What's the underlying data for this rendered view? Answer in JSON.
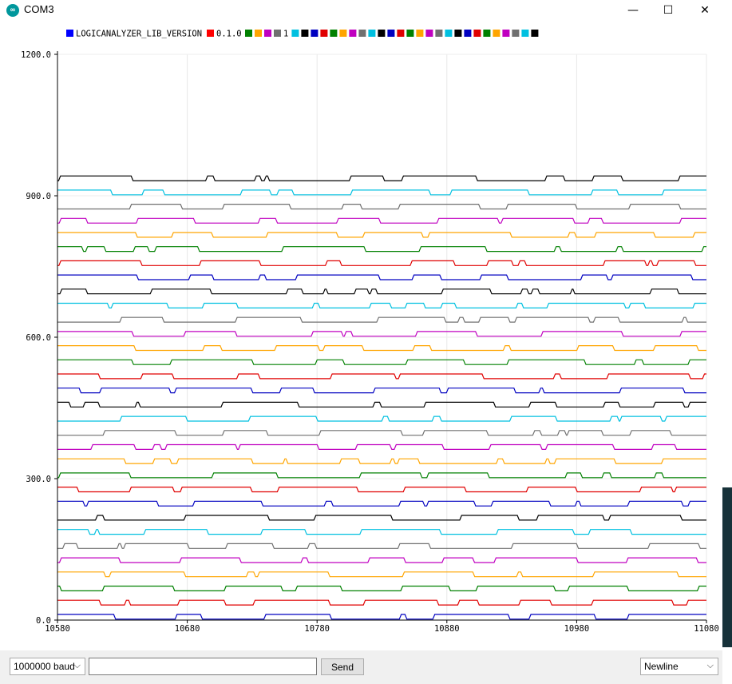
{
  "window": {
    "title": "COM3",
    "minimize_glyph": "—",
    "maximize_glyph": "☐",
    "close_glyph": "✕",
    "app_icon": "arduino-icon"
  },
  "legend": {
    "first_label": "LOGICANALYZER_LIB_VERSION",
    "second_label": "0.1.0",
    "third_label": "1",
    "colors_before_label2": [
      "#0000ff"
    ],
    "color_after_label1": "#ff0000",
    "swatches_group1": [
      "#008000",
      "#ffa500",
      "#c000c0",
      "#707070"
    ],
    "swatches_group2": [
      "#00c0e0",
      "#000000",
      "#0000c0",
      "#e00000",
      "#008000",
      "#ffa500",
      "#c000c0",
      "#707070",
      "#00c0e0",
      "#000000",
      "#0000c0",
      "#e00000",
      "#008000",
      "#ffa500",
      "#c000c0",
      "#707070",
      "#00c0e0",
      "#000000",
      "#0000c0",
      "#e00000",
      "#008000",
      "#ffa500",
      "#c000c0",
      "#707070",
      "#00c0e0",
      "#000000"
    ]
  },
  "chart_data": {
    "type": "line",
    "x_range": [
      10580,
      11080
    ],
    "y_range": [
      0,
      1200
    ],
    "x_ticks": [
      "10580",
      "10680",
      "10780",
      "10880",
      "10980",
      "11080"
    ],
    "y_ticks": [
      "0.0",
      "300.0",
      "600.0",
      "900.0",
      "1200.0"
    ],
    "grid": true,
    "channel_colors": [
      "#0000c0",
      "#e00000",
      "#008000",
      "#ffa500",
      "#c000c0",
      "#707070",
      "#00c0e0",
      "#000000"
    ],
    "channel_count": 32,
    "channel_spacing": 30,
    "channel_amplitude": 10
  },
  "bottom": {
    "baud": "1000000 baud",
    "send_value": "",
    "send_label": "Send",
    "line_ending": "Newline",
    "chevron": "⌵"
  }
}
